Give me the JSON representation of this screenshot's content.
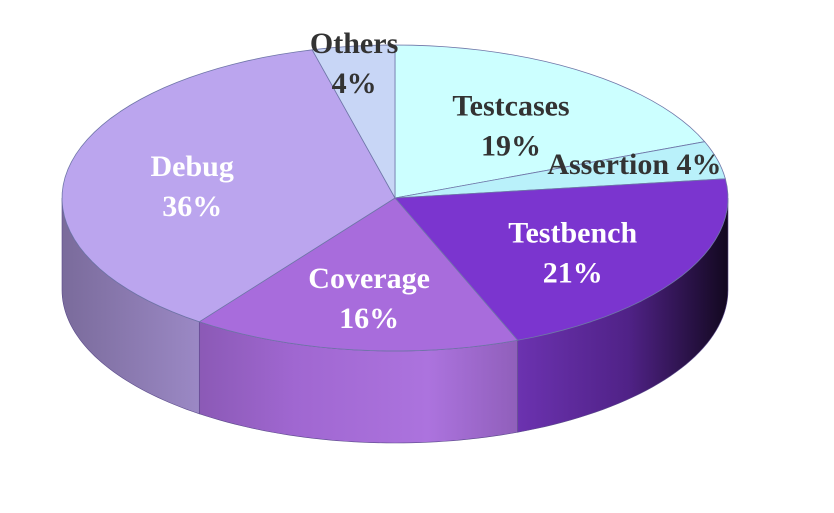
{
  "chart_data": {
    "type": "pie",
    "title": "",
    "slices": [
      {
        "label": "Testcases",
        "value": 19,
        "value_label": "19%",
        "color": "#CCFFFF",
        "label_color": "#333333"
      },
      {
        "label": "Assertion",
        "value": 4,
        "value_label": "4%",
        "color": "#B9F1FA",
        "label_color": "#333333"
      },
      {
        "label": "Testbench",
        "value": 21,
        "value_label": "21%",
        "color": "#7B35CF",
        "label_color": "#FFFFFF"
      },
      {
        "label": "Coverage",
        "value": 16,
        "value_label": "16%",
        "color": "#A86CDC",
        "label_color": "#FFFFFF"
      },
      {
        "label": "Debug",
        "value": 36,
        "value_label": "36%",
        "color": "#BBA5EE",
        "label_color": "#FFFFFF"
      },
      {
        "label": "Others",
        "value": 4,
        "value_label": "4%",
        "color": "#C8D6F6",
        "label_color": "#333333"
      }
    ],
    "start_position": "12 o'clock",
    "direction": "clockwise",
    "style": "3d-tilted",
    "legend": "none",
    "label_position": "on-slice"
  }
}
